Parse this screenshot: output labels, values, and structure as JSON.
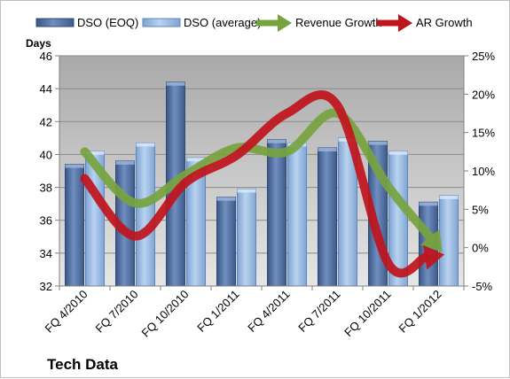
{
  "chart_data": {
    "type": "bar",
    "title": "Tech Data",
    "ylabel": "Days",
    "categories": [
      "FQ 4/2010",
      "FQ 7/2010",
      "FQ 10/2010",
      "FQ 1/2011",
      "FQ 4/2011",
      "FQ 7/2011",
      "FQ 10/2011",
      "FQ 1/2012"
    ],
    "bar_series": [
      {
        "name": "DSO (EOQ)",
        "color": "#4f6d9c",
        "values": [
          39.4,
          39.6,
          44.4,
          37.4,
          40.9,
          40.4,
          40.8,
          37.1
        ]
      },
      {
        "name": "DSO (average)",
        "color": "#8fb3de",
        "values": [
          40.2,
          40.7,
          39.8,
          37.9,
          40.7,
          41.0,
          40.2,
          37.5
        ]
      }
    ],
    "line_series": [
      {
        "name": "Revenue Growth",
        "color": "#77a33e",
        "values": [
          12.5,
          5.8,
          9.5,
          13.0,
          12.5,
          17.5,
          8.0,
          0.0
        ]
      },
      {
        "name": "AR Growth",
        "color": "#c0141c",
        "values": [
          9.0,
          1.5,
          8.5,
          12.0,
          17.5,
          18.5,
          -2.0,
          -1.0
        ]
      }
    ],
    "y_left": {
      "min": 32,
      "max": 46,
      "step": 2,
      "ticks": [
        "32",
        "34",
        "36",
        "38",
        "40",
        "42",
        "44",
        "46"
      ]
    },
    "y_right": {
      "min": -5,
      "max": 25,
      "step": 5,
      "ticks": [
        "-5%",
        "0%",
        "5%",
        "10%",
        "15%",
        "20%",
        "25%"
      ]
    },
    "legend_position": "top",
    "grid": true
  }
}
